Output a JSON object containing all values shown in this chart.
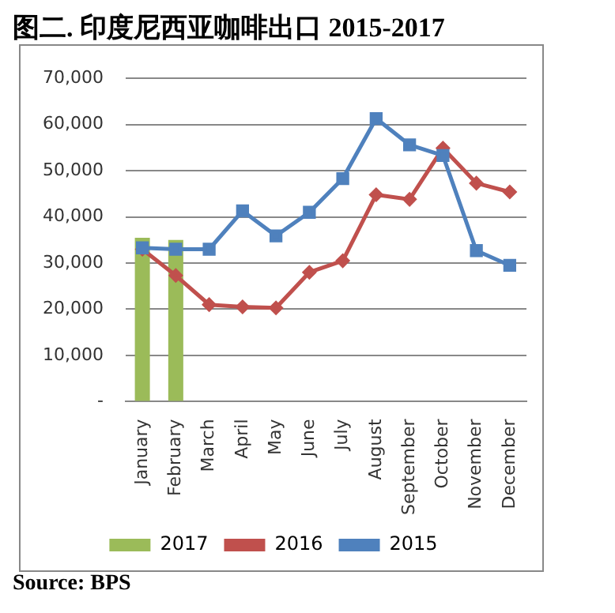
{
  "chart_data": {
    "type": "line",
    "title": "图二. 印度尼西亚咖啡出口 2015-2017",
    "categories": [
      "January",
      "February",
      "March",
      "April",
      "May",
      "June",
      "July",
      "August",
      "September",
      "October",
      "November",
      "December"
    ],
    "series": [
      {
        "name": "2017",
        "type": "bar",
        "color": "#9bbb59",
        "values": [
          35500,
          35000,
          null,
          null,
          null,
          null,
          null,
          null,
          null,
          null,
          null,
          null
        ]
      },
      {
        "name": "2016",
        "marker": "diamond",
        "color": "#c0504d",
        "values": [
          33000,
          27300,
          21000,
          20500,
          20300,
          28000,
          30500,
          44800,
          43800,
          54900,
          47300,
          45400
        ]
      },
      {
        "name": "2015",
        "marker": "square",
        "color": "#4f81bd",
        "values": [
          33300,
          33000,
          33000,
          41300,
          35900,
          41000,
          48300,
          61300,
          55600,
          53300,
          32700,
          29500
        ]
      }
    ],
    "ylim": [
      0,
      70000
    ],
    "yticks": [
      {
        "value": 0,
        "label": "-"
      },
      {
        "value": 10000,
        "label": "10,000"
      },
      {
        "value": 20000,
        "label": "20,000"
      },
      {
        "value": 30000,
        "label": "30,000"
      },
      {
        "value": 40000,
        "label": "40,000"
      },
      {
        "value": 50000,
        "label": "50,000"
      },
      {
        "value": 60000,
        "label": "60,000"
      },
      {
        "value": 70000,
        "label": "70,000"
      }
    ],
    "grid": "y",
    "legend": "bottom",
    "annotations": [
      "Source: BPS"
    ]
  }
}
